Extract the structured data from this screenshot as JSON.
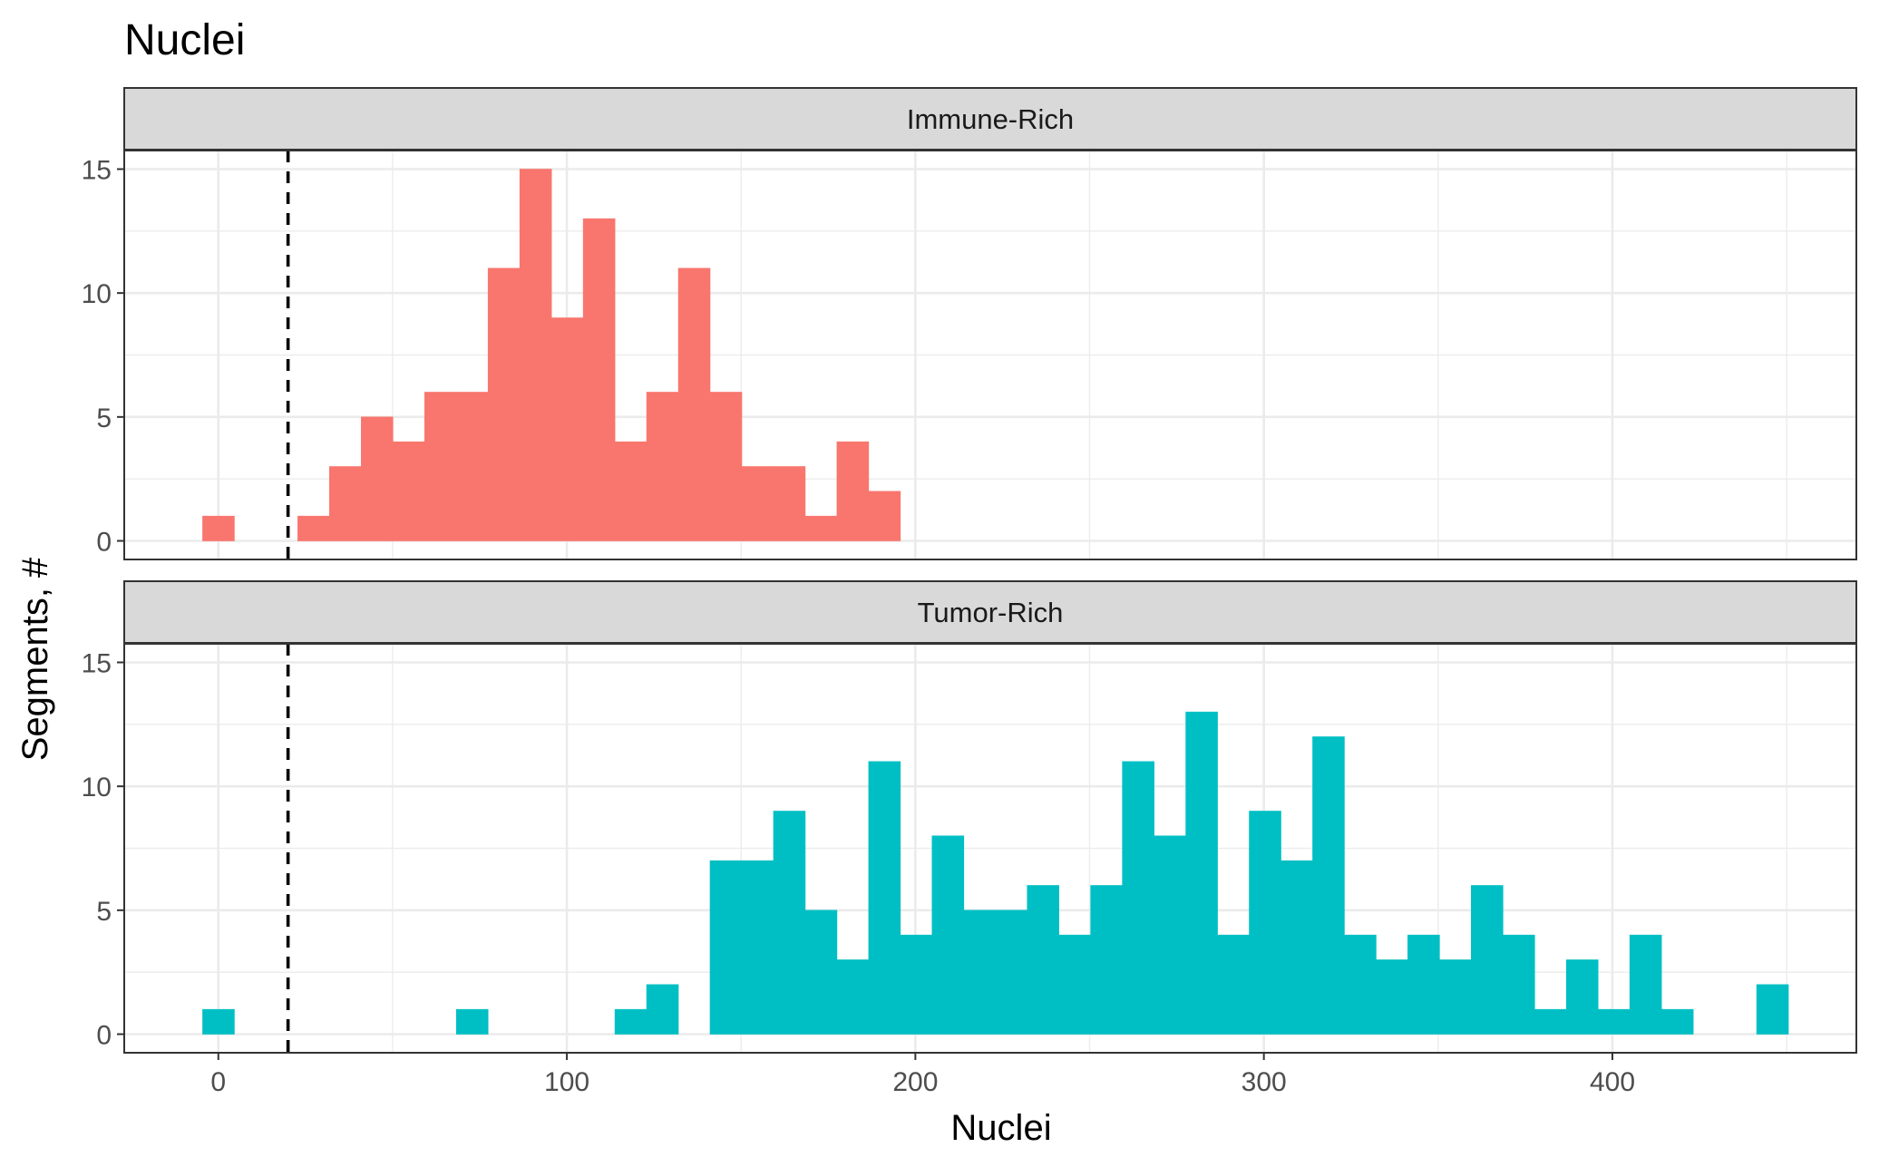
{
  "figure": {
    "title": "Nuclei"
  },
  "chart_data": {
    "type": "bar",
    "subtype": "faceted-histogram",
    "title": "Nuclei",
    "xlabel": "Nuclei",
    "ylabel": "Segments, #",
    "xlim": [
      -27,
      470
    ],
    "ylim": [
      -0.75,
      15.75
    ],
    "x_ticks": [
      0,
      100,
      200,
      300,
      400
    ],
    "x_tick_labels": [
      "0",
      "100",
      "200",
      "300",
      "400"
    ],
    "y_ticks": [
      0,
      5,
      10,
      15
    ],
    "y_tick_labels": [
      "0",
      "5",
      "10",
      "15"
    ],
    "grid": true,
    "bin_width": 9.1,
    "threshold_line": {
      "x": 20,
      "style": "dashed",
      "color": "#000000"
    },
    "facets": [
      {
        "label": "Immune-Rich",
        "color": "#F8766D",
        "bin_starts": [
          -4.5,
          22.8,
          31.9,
          41.0,
          50.1,
          59.2,
          68.3,
          77.4,
          86.5,
          95.6,
          104.7,
          113.8,
          122.9,
          132.0,
          141.1,
          150.2,
          159.3,
          168.4,
          177.5,
          186.6
        ],
        "values": [
          1,
          1,
          3,
          5,
          4,
          6,
          6,
          11,
          15,
          9,
          13,
          4,
          6,
          11,
          6,
          3,
          3,
          1,
          4,
          2
        ]
      },
      {
        "label": "Tumor-Rich",
        "color": "#00BFC4",
        "bin_starts": [
          -4.5,
          68.3,
          113.8,
          122.9,
          141.1,
          150.2,
          159.3,
          168.4,
          177.5,
          186.6,
          195.7,
          204.8,
          213.9,
          223.0,
          232.1,
          241.2,
          250.3,
          259.4,
          268.5,
          277.6,
          286.7,
          295.8,
          304.9,
          314.0,
          323.1,
          332.2,
          341.3,
          350.4,
          359.5,
          368.6,
          377.7,
          386.8,
          395.9,
          405.0,
          414.1,
          441.4
        ],
        "values": [
          1,
          1,
          1,
          2,
          7,
          7,
          9,
          5,
          3,
          11,
          4,
          8,
          5,
          5,
          6,
          4,
          6,
          11,
          8,
          13,
          4,
          9,
          7,
          12,
          4,
          3,
          4,
          3,
          6,
          4,
          1,
          3,
          1,
          4,
          1,
          2
        ]
      }
    ]
  }
}
